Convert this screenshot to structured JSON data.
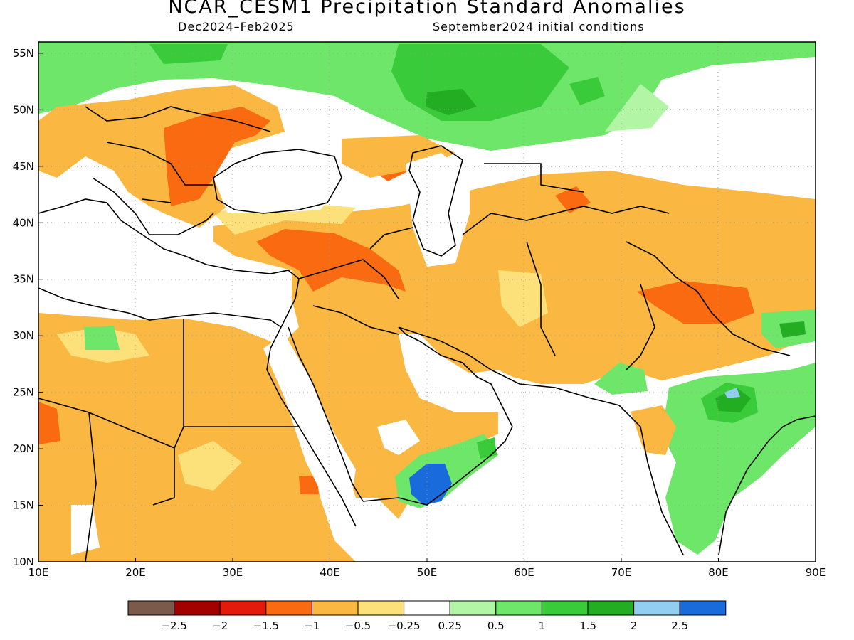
{
  "title": "NCAR_CESM1 Precipitation Standard Anomalies",
  "period": "Dec2024–Feb2025",
  "init": "September2024 initial conditions",
  "map": {
    "lon_ticks": [
      "10E",
      "20E",
      "30E",
      "40E",
      "50E",
      "60E",
      "70E",
      "80E",
      "90E"
    ],
    "lat_ticks": [
      "55N",
      "50N",
      "45N",
      "40N",
      "35N",
      "30N",
      "25N",
      "20N",
      "15N",
      "10N"
    ],
    "lon_range": [
      10,
      90
    ],
    "lat_range": [
      10,
      56
    ],
    "grid": "dotted"
  },
  "legend": {
    "colors": [
      "#7b5a4c",
      "#a30000",
      "#e31a0c",
      "#fa6a10",
      "#fab843",
      "#fce17a",
      "#ffffff",
      "#b2f5a4",
      "#6ee66a",
      "#3acb3a",
      "#22ad22",
      "#92cdf2",
      "#196bdc"
    ],
    "labels": [
      "−2.5",
      "−2",
      "−1.5",
      "−1",
      "−0.5",
      "−0.25",
      "0.25",
      "0.5",
      "1",
      "1.5",
      "2",
      "2.5"
    ]
  }
}
